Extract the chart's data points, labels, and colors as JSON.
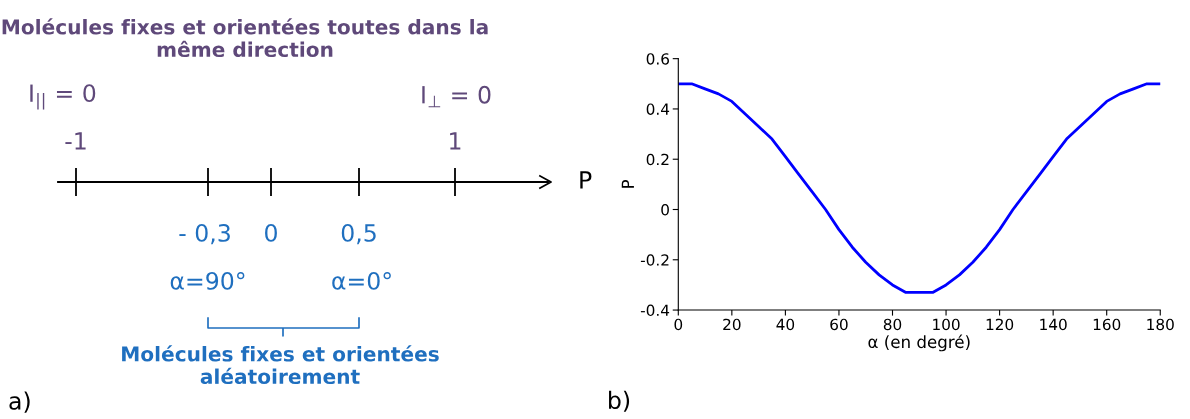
{
  "chart_data": [
    {
      "type": "other",
      "title": "Molécules fixes et orientées toutes dans la même direction",
      "xlabel": "P",
      "annotations": [
        "I$_{||}$ = 0",
        "I$_{⊥}$ = 0",
        "-1",
        "1",
        "- 0,3",
        "0",
        "0,5",
        "α=90°",
        "α=0°",
        "Molécules fixes et orientées\naléatoirement",
        "a)"
      ]
    },
    {
      "type": "line",
      "xlabel": "α (en degré)",
      "ylabel": "P",
      "x": [
        0,
        5,
        10,
        15,
        20,
        25,
        30,
        35,
        40,
        45,
        50,
        55,
        60,
        65,
        70,
        75,
        80,
        85,
        90,
        95,
        100,
        105,
        110,
        115,
        120,
        125,
        130,
        135,
        140,
        145,
        150,
        155,
        160,
        165,
        170,
        175,
        180
      ],
      "series": [
        {
          "color": "#0000ff",
          "values": [
            0.5,
            0.5,
            0.48,
            0.46,
            0.43,
            0.38,
            0.33,
            0.28,
            0.21,
            0.14,
            0.07,
            0,
            -0.08,
            -0.15,
            -0.21,
            -0.26,
            -0.3,
            -0.33,
            -0.33,
            -0.33,
            -0.3,
            -0.26,
            -0.21,
            -0.15,
            -0.08,
            0,
            0.07,
            0.14,
            0.21,
            0.28,
            0.33,
            0.38,
            0.43,
            0.46,
            0.48,
            0.5,
            0.5
          ]
        }
      ],
      "xlim": [
        0,
        180
      ],
      "xticks": [
        0,
        20,
        40,
        60,
        80,
        100,
        120,
        140,
        160,
        180
      ],
      "ylim": [
        -0.4,
        0.6
      ],
      "yticks": [
        -0.4,
        -0.2,
        0,
        0.2,
        0.4,
        0.6
      ],
      "grid": false,
      "annotations": [
        "b)"
      ]
    }
  ]
}
